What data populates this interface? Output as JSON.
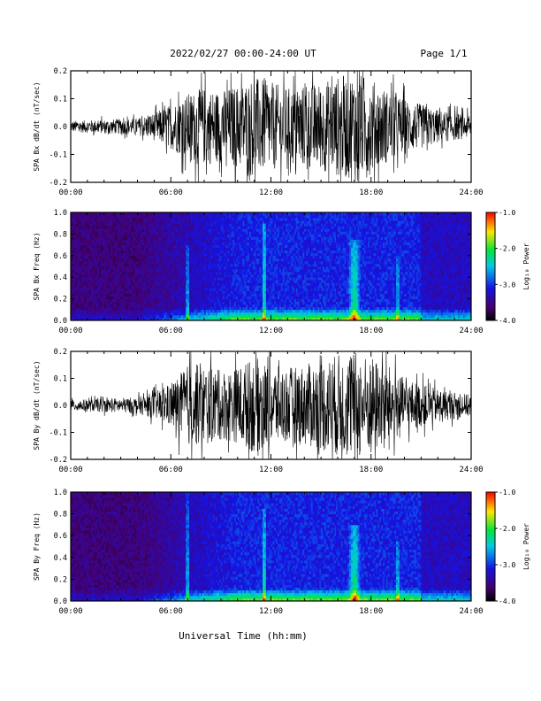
{
  "header": {
    "title": "2022/02/27  00:00-24:00 UT",
    "page": "Page 1/1"
  },
  "xlabel": "Universal Time (hh:mm)",
  "chart_data": [
    {
      "type": "line",
      "ylabel": "SPA Bx dB/dt (nT/sec)",
      "xlim": [
        0,
        24
      ],
      "ylim": [
        -0.2,
        0.2
      ],
      "x_ticks": [
        "00:00",
        "06:00",
        "12:00",
        "18:00",
        "24:00"
      ],
      "y_ticks": [
        "0.2",
        "0.1",
        "0.0",
        "-0.1",
        "-0.2"
      ],
      "envelope": {
        "hours": [
          0,
          2,
          4,
          5,
          6,
          7,
          8,
          9,
          10,
          11,
          12,
          13,
          14,
          15,
          16,
          17,
          18,
          19,
          20,
          21,
          22,
          23,
          24
        ],
        "amplitude": [
          0.02,
          0.025,
          0.03,
          0.05,
          0.08,
          0.12,
          0.14,
          0.13,
          0.15,
          0.18,
          0.16,
          0.14,
          0.15,
          0.16,
          0.18,
          0.2,
          0.17,
          0.13,
          0.1,
          0.08,
          0.06,
          0.05,
          0.04
        ]
      }
    },
    {
      "type": "heatmap",
      "ylabel": "SPA Bx Freq (Hz)",
      "xlim": [
        0,
        24
      ],
      "ylim": [
        0,
        1
      ],
      "x_ticks": [
        "00:00",
        "06:00",
        "12:00",
        "18:00",
        "24:00"
      ],
      "y_ticks": [
        "1.0",
        "0.8",
        "0.6",
        "0.4",
        "0.2",
        "0.0"
      ],
      "colorbar": {
        "label": "Log₁₀ Power",
        "ticks": [
          "-1.0",
          "-2.0",
          "-3.0",
          "-4.0"
        ],
        "range": [
          -4,
          -1
        ]
      },
      "bursts": [
        {
          "hour": 7.0,
          "width": 0.15,
          "top": 0.7
        },
        {
          "hour": 11.6,
          "width": 0.15,
          "top": 0.9
        },
        {
          "hour": 17.0,
          "width": 0.4,
          "top": 0.75
        },
        {
          "hour": 19.6,
          "width": 0.1,
          "top": 0.6
        }
      ]
    },
    {
      "type": "line",
      "ylabel": "SPA By dB/dt (nT/sec)",
      "xlim": [
        0,
        24
      ],
      "ylim": [
        -0.2,
        0.2
      ],
      "x_ticks": [
        "00:00",
        "06:00",
        "12:00",
        "18:00",
        "24:00"
      ],
      "y_ticks": [
        "0.2",
        "0.1",
        "0.0",
        "-0.1",
        "-0.2"
      ],
      "envelope": {
        "hours": [
          0,
          2,
          4,
          5,
          6,
          7,
          8,
          9,
          10,
          11,
          12,
          13,
          14,
          15,
          16,
          17,
          18,
          19,
          20,
          21,
          22,
          23,
          24
        ],
        "amplitude": [
          0.02,
          0.025,
          0.03,
          0.05,
          0.08,
          0.15,
          0.15,
          0.13,
          0.14,
          0.18,
          0.15,
          0.14,
          0.15,
          0.17,
          0.19,
          0.2,
          0.18,
          0.15,
          0.1,
          0.08,
          0.06,
          0.05,
          0.04
        ]
      }
    },
    {
      "type": "heatmap",
      "ylabel": "SPA By Freq (Hz)",
      "xlim": [
        0,
        24
      ],
      "ylim": [
        0,
        1
      ],
      "x_ticks": [
        "00:00",
        "06:00",
        "12:00",
        "18:00",
        "24:00"
      ],
      "y_ticks": [
        "1.0",
        "0.8",
        "0.6",
        "0.4",
        "0.2",
        "0.0"
      ],
      "colorbar": {
        "label": "Log₁₀ Power",
        "ticks": [
          "-1.0",
          "-2.0",
          "-3.0",
          "-4.0"
        ],
        "range": [
          -4,
          -1
        ]
      },
      "bursts": [
        {
          "hour": 7.0,
          "width": 0.15,
          "top": 1.0
        },
        {
          "hour": 11.6,
          "width": 0.15,
          "top": 0.85
        },
        {
          "hour": 17.0,
          "width": 0.4,
          "top": 0.7
        },
        {
          "hour": 19.6,
          "width": 0.1,
          "top": 0.55
        }
      ]
    }
  ]
}
